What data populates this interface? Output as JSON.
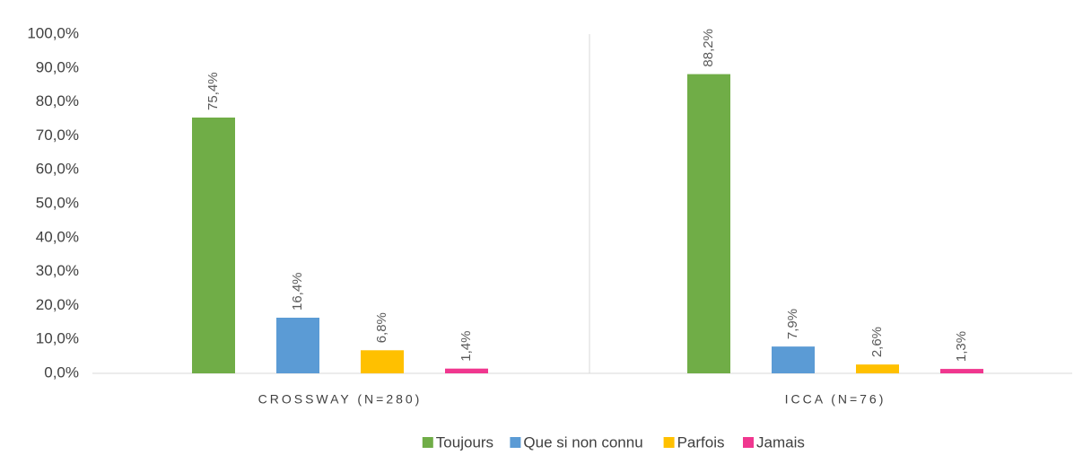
{
  "chart_data": {
    "type": "bar",
    "categories": [
      "CROSSWAY (N=280)",
      "ICCA (N=76)"
    ],
    "series": [
      {
        "name": "Toujours",
        "color": "#70ad47",
        "values": [
          75.4,
          88.2
        ],
        "value_labels": [
          "75,4%",
          "88,2%"
        ]
      },
      {
        "name": "Que si non connu",
        "color": "#5b9bd5",
        "values": [
          16.4,
          7.9
        ],
        "value_labels": [
          "16,4%",
          "7,9%"
        ]
      },
      {
        "name": "Parfois",
        "color": "#ffc000",
        "values": [
          6.8,
          2.6
        ],
        "value_labels": [
          "6,8%",
          "2,6%"
        ]
      },
      {
        "name": "Jamais",
        "color": "#f0378f",
        "values": [
          1.4,
          1.3
        ],
        "value_labels": [
          "1,4%",
          "1,3%"
        ]
      }
    ],
    "ylim": [
      0,
      100
    ],
    "yticks": [
      {
        "value": 0,
        "label": "0,0%"
      },
      {
        "value": 10,
        "label": "10,0%"
      },
      {
        "value": 20,
        "label": "20,0%"
      },
      {
        "value": 30,
        "label": "30,0%"
      },
      {
        "value": 40,
        "label": "40,0%"
      },
      {
        "value": 50,
        "label": "50,0%"
      },
      {
        "value": 60,
        "label": "60,0%"
      },
      {
        "value": 70,
        "label": "70,0%"
      },
      {
        "value": 80,
        "label": "80,0%"
      },
      {
        "value": 90,
        "label": "90,0%"
      },
      {
        "value": 100,
        "label": "100,0%"
      }
    ],
    "legend": "bottom"
  }
}
